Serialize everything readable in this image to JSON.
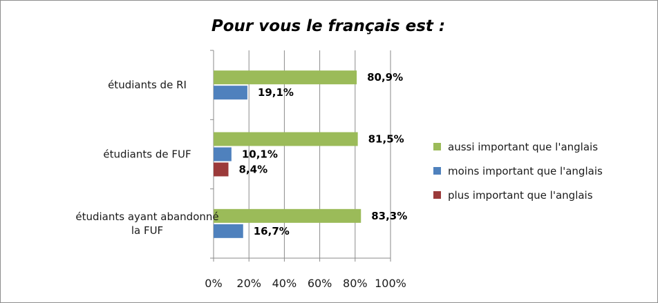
{
  "chart_data": {
    "type": "bar",
    "orientation": "horizontal",
    "title": "Pour vous le français est :",
    "categories": [
      [
        "étudiants de RI"
      ],
      [
        "étudiants de FUF"
      ],
      [
        "étudiants ayant abandonné",
        "la FUF"
      ]
    ],
    "series": [
      {
        "name": "aussi important que l'anglais",
        "color": "#9bbb59",
        "values": [
          80.9,
          81.5,
          83.3
        ],
        "labels": [
          "80,9%",
          "81,5%",
          "83,3%"
        ]
      },
      {
        "name": "moins important que l'anglais",
        "color": "#4f81bd",
        "values": [
          19.1,
          10.1,
          16.7
        ],
        "labels": [
          "19,1%",
          "10,1%",
          "16,7%"
        ]
      },
      {
        "name": "plus important que l'anglais",
        "color": "#9b3a3a",
        "values": [
          null,
          8.4,
          null
        ],
        "labels": [
          null,
          "8,4%",
          null
        ]
      }
    ],
    "xlim": [
      0,
      100
    ],
    "xticks": [
      "0%",
      "20%",
      "40%",
      "60%",
      "80%",
      "100%"
    ],
    "grid": true,
    "legend_position": "right"
  }
}
